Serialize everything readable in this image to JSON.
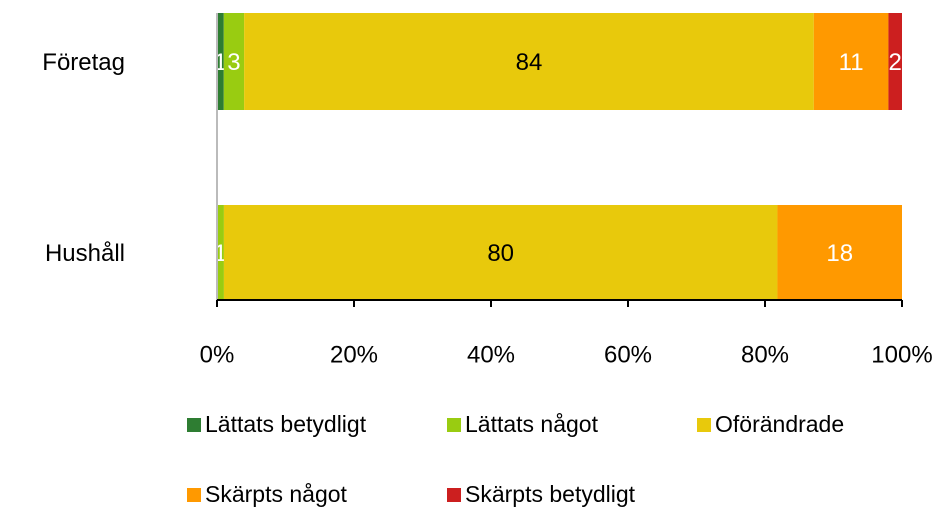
{
  "chart_data": {
    "type": "stacked_bar_100_horizontal",
    "categories": [
      "Företag",
      "Hushåll"
    ],
    "series": [
      {
        "name": "Lättats betydligt",
        "color": "#2e7d32",
        "label_color": "#ffffff",
        "values": [
          1,
          0
        ]
      },
      {
        "name": "Lättats något",
        "color": "#99cc11",
        "label_color": "#ffffff",
        "values": [
          3,
          1
        ]
      },
      {
        "name": "Oförändrade",
        "color": "#e8c90c",
        "label_color": "#000000",
        "values": [
          84,
          80
        ]
      },
      {
        "name": "Skärpts något",
        "color": "#ff9900",
        "label_color": "#ffffff",
        "values": [
          11,
          18
        ]
      },
      {
        "name": "Skärpts betydligt",
        "color": "#cc1f1f",
        "label_color": "#ffffff",
        "values": [
          2,
          0
        ]
      }
    ],
    "xlim": [
      0,
      100
    ],
    "xticks": [
      {
        "value": 0,
        "label": "0%"
      },
      {
        "value": 20,
        "label": "20%"
      },
      {
        "value": 40,
        "label": "40%"
      },
      {
        "value": 60,
        "label": "60%"
      },
      {
        "value": 80,
        "label": "80%"
      },
      {
        "value": 100,
        "label": "100%"
      }
    ]
  }
}
